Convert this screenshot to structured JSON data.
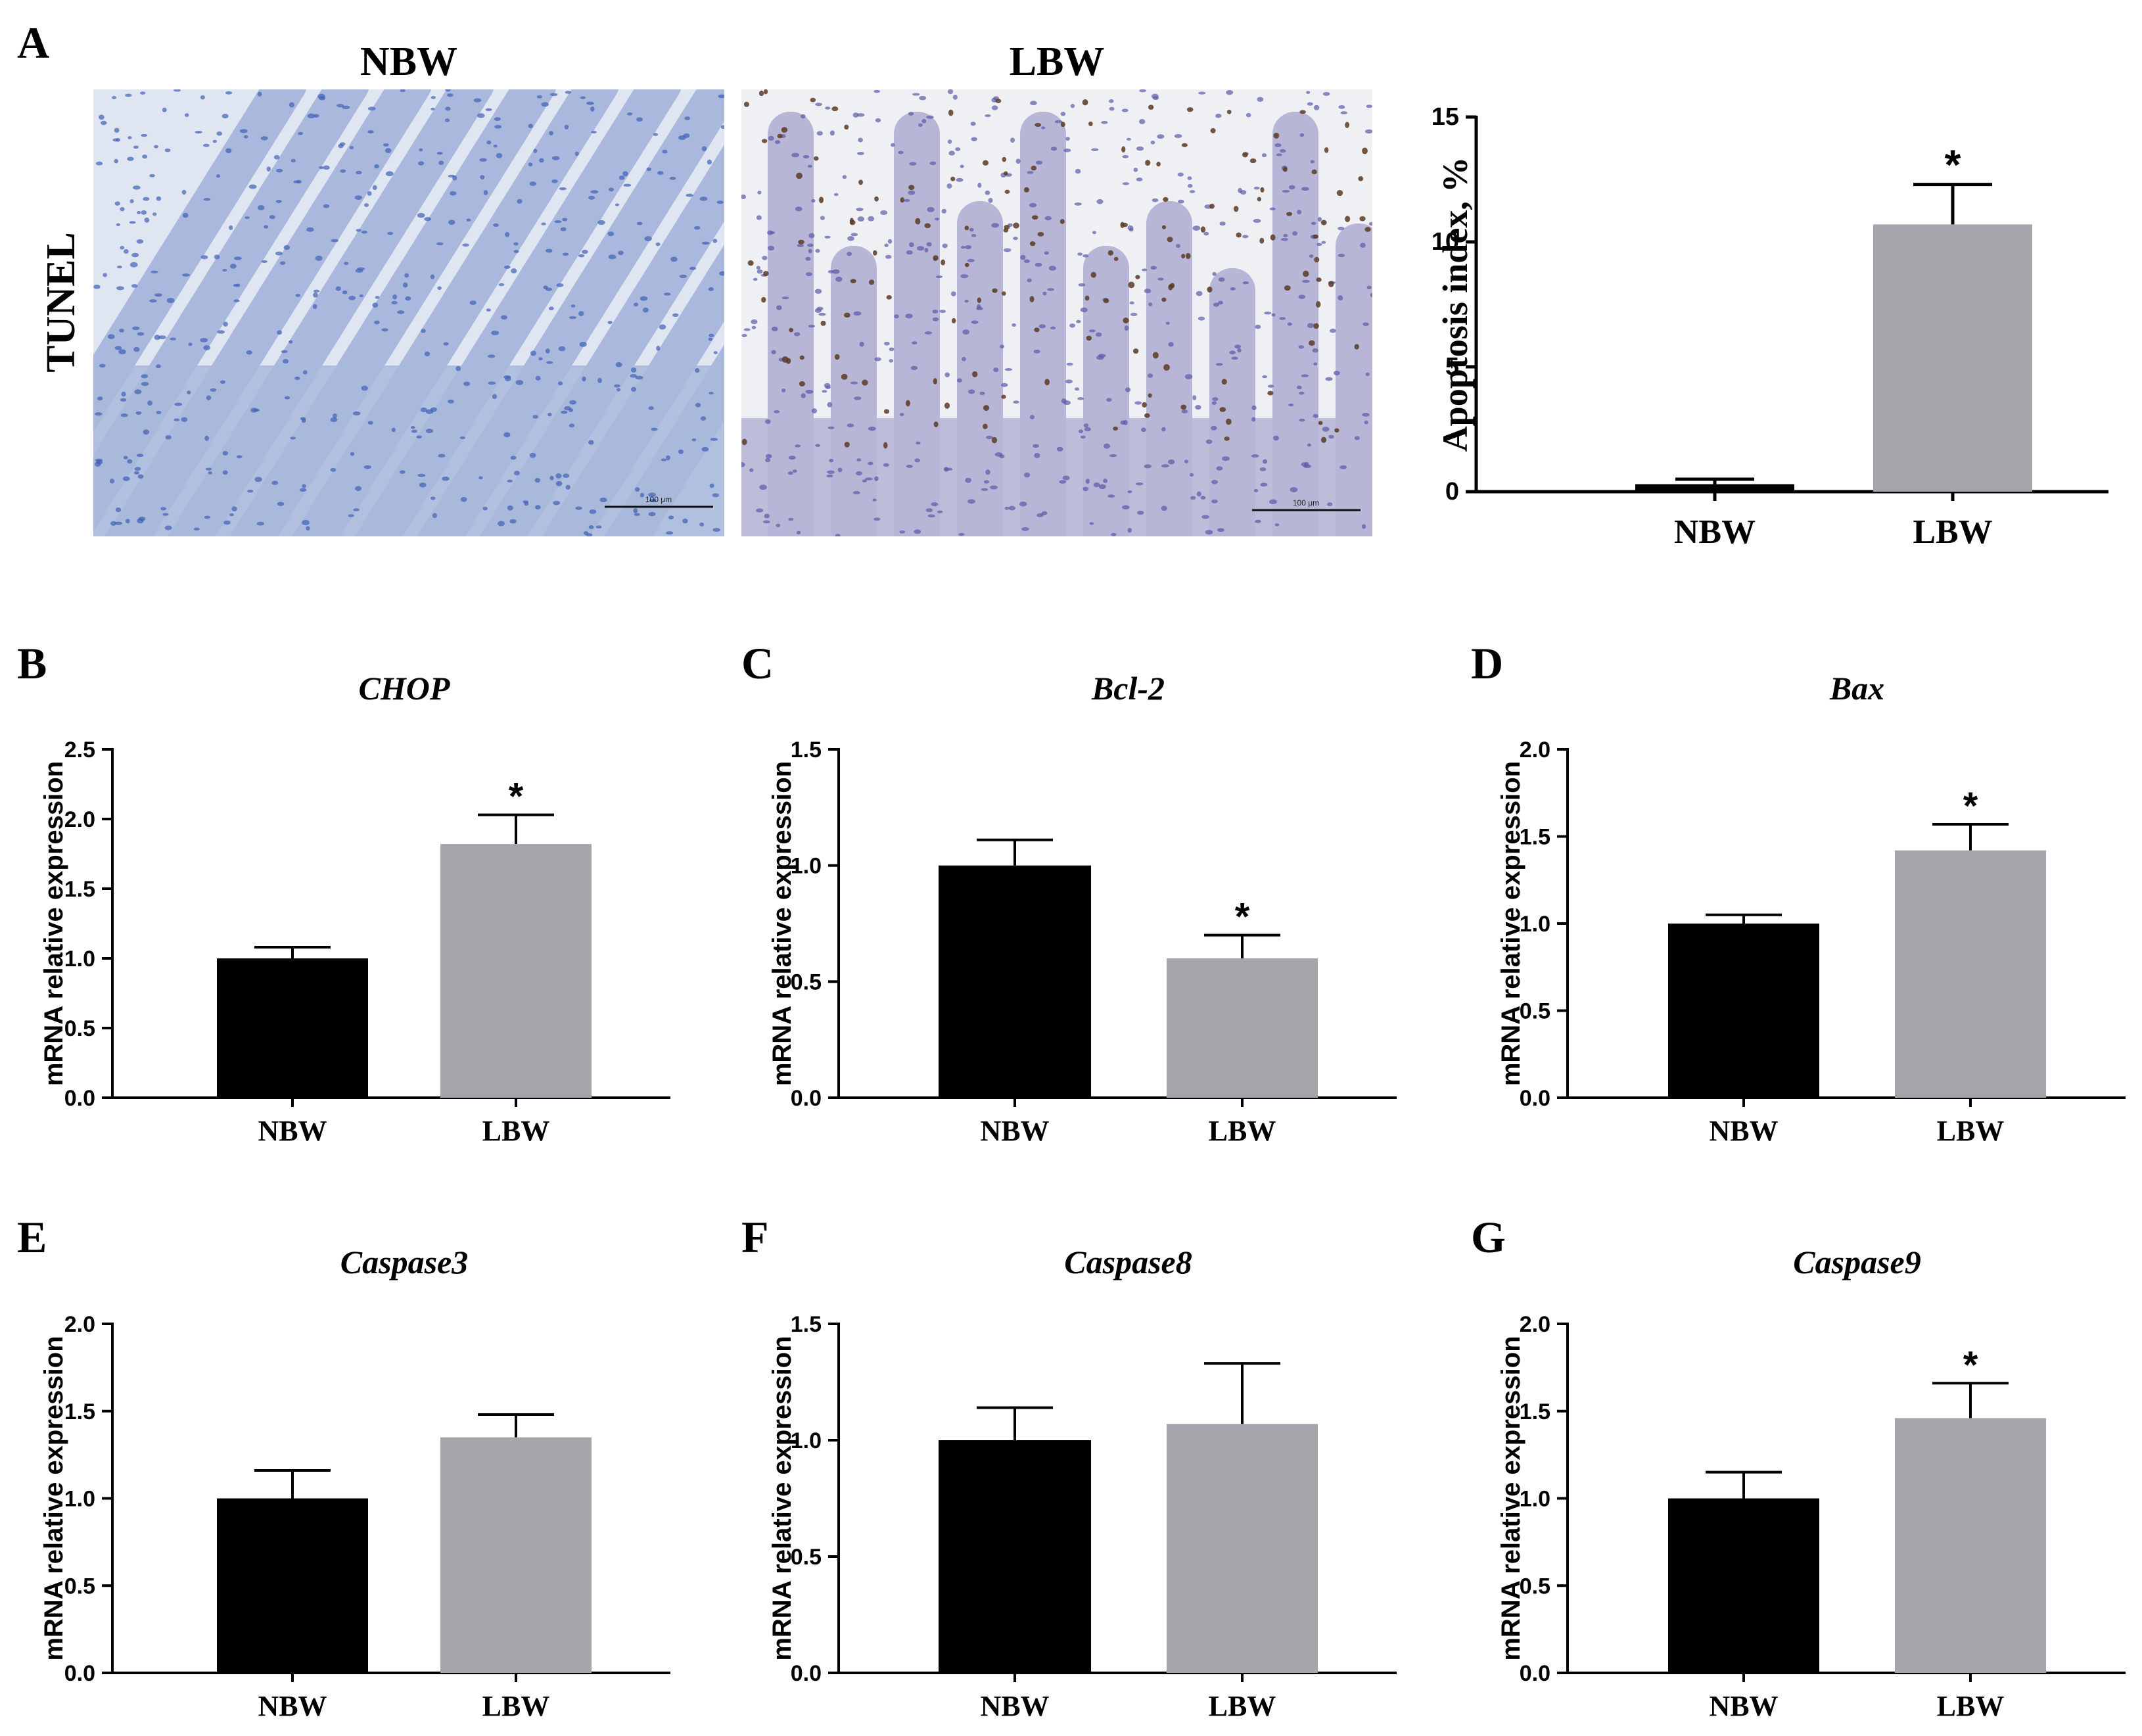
{
  "panel_a": {
    "letter": "A",
    "row_label": "TUNEL",
    "images": [
      {
        "label": "NBW",
        "scale_bar": "100 μm",
        "colors": {
          "bg": "#dfe6f2",
          "tissue": "#a9b8dc",
          "nuclei": "#3f5fb4"
        },
        "brown_nuclei": false
      },
      {
        "label": "LBW",
        "scale_bar": "100 μm",
        "colors": {
          "bg": "#eef0f3",
          "tissue": "#b7b6d6",
          "nuclei": "#5b58a6"
        },
        "brown_nuclei": true
      }
    ]
  },
  "colors": {
    "nbw": "#000000",
    "lbw": "#a6a5ab"
  },
  "chart_data": [
    {
      "id": "A",
      "type": "bar",
      "title": "",
      "categories": [
        "NBW",
        "LBW"
      ],
      "values": [
        0.3,
        10.7
      ],
      "errors": [
        0.2,
        1.6
      ],
      "significance": [
        "",
        "*"
      ],
      "ylabel": "Apoptosis index, %",
      "ylim": [
        0,
        15
      ],
      "yticks": [
        "0",
        "5",
        "10",
        "15"
      ],
      "grid": false
    },
    {
      "id": "B",
      "type": "bar",
      "title": "CHOP",
      "categories": [
        "NBW",
        "LBW"
      ],
      "values": [
        1.0,
        1.82
      ],
      "errors": [
        0.08,
        0.21
      ],
      "significance": [
        "",
        "*"
      ],
      "ylabel": "mRNA relative expression",
      "ylim": [
        0,
        2.5
      ],
      "yticks": [
        "0.0",
        "0.5",
        "1.0",
        "1.5",
        "2.0",
        "2.5"
      ],
      "grid": false
    },
    {
      "id": "C",
      "type": "bar",
      "title": "Bcl-2",
      "categories": [
        "NBW",
        "LBW"
      ],
      "values": [
        1.0,
        0.6
      ],
      "errors": [
        0.11,
        0.1
      ],
      "significance": [
        "",
        "*"
      ],
      "ylabel": "mRNA relative expression",
      "ylim": [
        0,
        1.5
      ],
      "yticks": [
        "0.0",
        "0.5",
        "1.0",
        "1.5"
      ],
      "grid": false
    },
    {
      "id": "D",
      "type": "bar",
      "title": "Bax",
      "categories": [
        "NBW",
        "LBW"
      ],
      "values": [
        1.0,
        1.42
      ],
      "errors": [
        0.05,
        0.15
      ],
      "significance": [
        "",
        "*"
      ],
      "ylabel": "mRNA relative expression",
      "ylim": [
        0,
        2.0
      ],
      "yticks": [
        "0.0",
        "0.5",
        "1.0",
        "1.5",
        "2.0"
      ],
      "grid": false
    },
    {
      "id": "E",
      "type": "bar",
      "title": "Caspase3",
      "categories": [
        "NBW",
        "LBW"
      ],
      "values": [
        1.0,
        1.35
      ],
      "errors": [
        0.16,
        0.13
      ],
      "significance": [
        "",
        ""
      ],
      "ylabel": "mRNA relative expression",
      "ylim": [
        0,
        2.0
      ],
      "yticks": [
        "0.0",
        "0.5",
        "1.0",
        "1.5",
        "2.0"
      ],
      "grid": false
    },
    {
      "id": "F",
      "type": "bar",
      "title": "Caspase8",
      "categories": [
        "NBW",
        "LBW"
      ],
      "values": [
        1.0,
        1.07
      ],
      "errors": [
        0.14,
        0.26
      ],
      "significance": [
        "",
        ""
      ],
      "ylabel": "mRNA relative expression",
      "ylim": [
        0,
        1.5
      ],
      "yticks": [
        "0.0",
        "0.5",
        "1.0",
        "1.5"
      ],
      "grid": false
    },
    {
      "id": "G",
      "type": "bar",
      "title": "Caspase9",
      "categories": [
        "NBW",
        "LBW"
      ],
      "values": [
        1.0,
        1.46
      ],
      "errors": [
        0.15,
        0.2
      ],
      "significance": [
        "",
        "*"
      ],
      "ylabel": "mRNA relative expression",
      "ylim": [
        0,
        2.0
      ],
      "yticks": [
        "0.0",
        "0.5",
        "1.0",
        "1.5",
        "2.0"
      ],
      "grid": false
    }
  ]
}
